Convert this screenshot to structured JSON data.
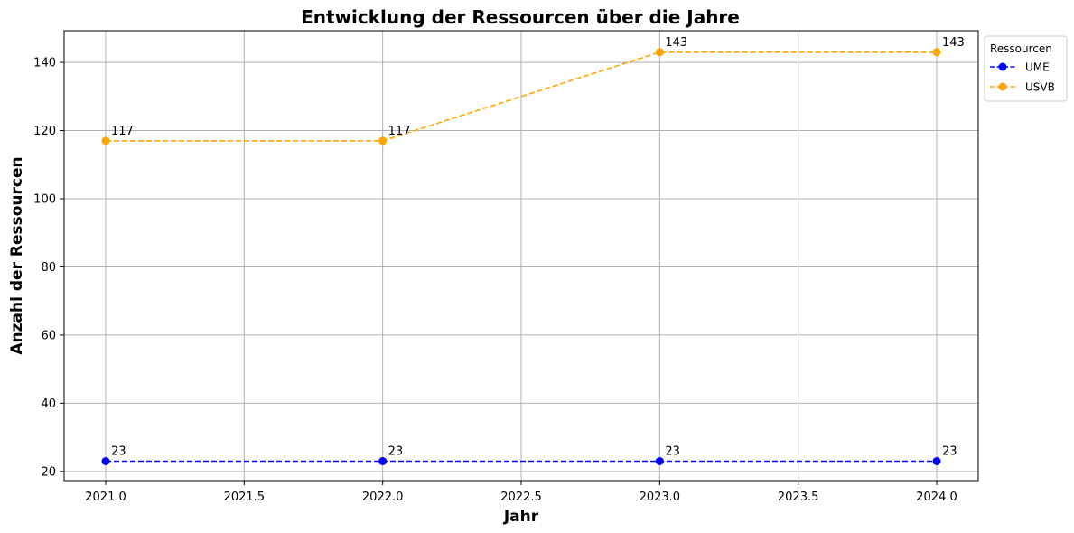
{
  "chart_data": {
    "type": "line",
    "title": "Entwicklung der Ressourcen über die Jahre",
    "xlabel": "Jahr",
    "ylabel": "Anzahl der Ressourcen",
    "x": [
      2021,
      2022,
      2023,
      2024
    ],
    "xlim": [
      2020.85,
      2024.15
    ],
    "ylim": [
      17.3,
      149.3
    ],
    "xticks": [
      2021.0,
      2021.5,
      2022.0,
      2022.5,
      2023.0,
      2023.5,
      2024.0
    ],
    "xtick_labels": [
      "2021.0",
      "2021.5",
      "2022.0",
      "2022.5",
      "2023.0",
      "2023.5",
      "2024.0"
    ],
    "yticks": [
      20,
      40,
      60,
      80,
      100,
      120,
      140
    ],
    "ytick_labels": [
      "20",
      "40",
      "60",
      "80",
      "100",
      "120",
      "140"
    ],
    "grid": true,
    "legend": {
      "title": "Ressourcen",
      "placement": "outside-top-right"
    },
    "series": [
      {
        "name": "UME",
        "values": [
          23,
          23,
          23,
          23
        ],
        "data_labels": [
          "23",
          "23",
          "23",
          "23"
        ],
        "color": "#0000ff",
        "linestyle": "dashed",
        "marker": "circle"
      },
      {
        "name": "USVB",
        "values": [
          117,
          117,
          143,
          143
        ],
        "data_labels": [
          "117",
          "117",
          "143",
          "143"
        ],
        "color": "#ffa500",
        "linestyle": "dashed",
        "marker": "circle"
      }
    ]
  }
}
